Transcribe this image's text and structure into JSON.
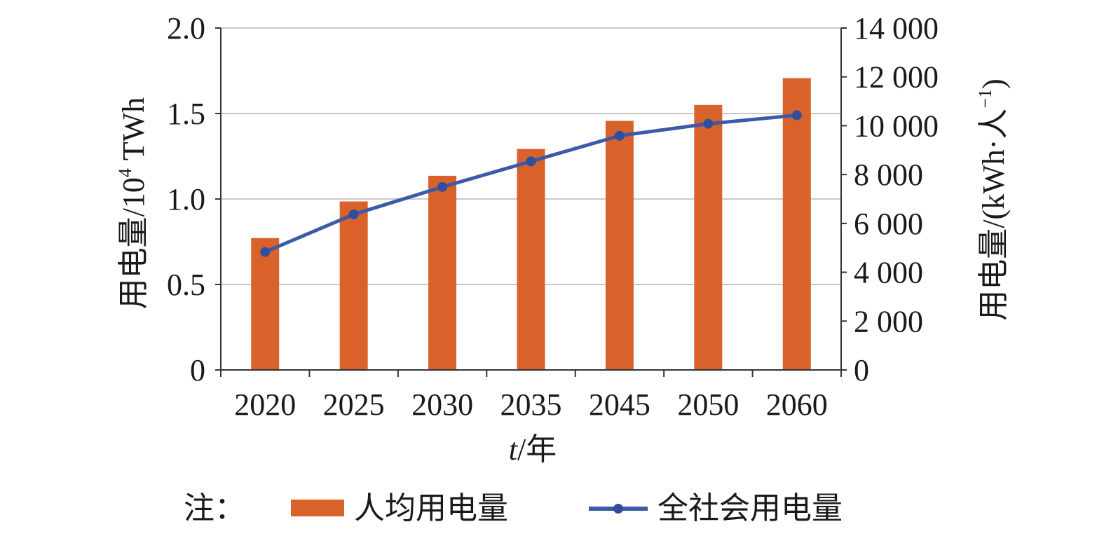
{
  "chart_data": {
    "type": "bar+line",
    "categories": [
      "2020",
      "2025",
      "2030",
      "2035",
      "2045",
      "2050",
      "2060"
    ],
    "xlabel_italic": "t",
    "xlabel_rest": "/年",
    "left_axis": {
      "label_prefix": "用电量/10",
      "label_sup": "4",
      "label_suffix": " TWh",
      "ylim": [
        0,
        2.0
      ],
      "ticks": [
        "0",
        "0.5",
        "1.0",
        "1.5",
        "2.0"
      ],
      "tick_values": [
        0,
        0.5,
        1.0,
        1.5,
        2.0
      ]
    },
    "right_axis": {
      "label_prefix": "用电量/(kWh·人",
      "label_sup": "−1",
      "label_suffix": ")",
      "ylim": [
        0,
        14000
      ],
      "ticks": [
        "0",
        "2 000",
        "4 000",
        "6 000",
        "8 000",
        "10 000",
        "12 000",
        "14 000"
      ],
      "tick_values": [
        0,
        2000,
        4000,
        6000,
        8000,
        10000,
        12000,
        14000
      ]
    },
    "series": [
      {
        "name": "人均用电量",
        "kind": "bar",
        "axis": "right",
        "values": [
          5400,
          6900,
          7950,
          9050,
          10200,
          10850,
          11950
        ]
      },
      {
        "name": "全社会用电量",
        "kind": "line",
        "axis": "left",
        "values": [
          0.69,
          0.91,
          1.07,
          1.22,
          1.37,
          1.44,
          1.49
        ]
      }
    ],
    "legend": {
      "prefix": "注：",
      "placement": "bottom"
    },
    "grid": true,
    "colors": {
      "bar": "#d9622b",
      "line": "#3c5aa8",
      "marker": "#2f4f9e",
      "grid": "#c8c8c8",
      "axis": "#333333"
    }
  }
}
